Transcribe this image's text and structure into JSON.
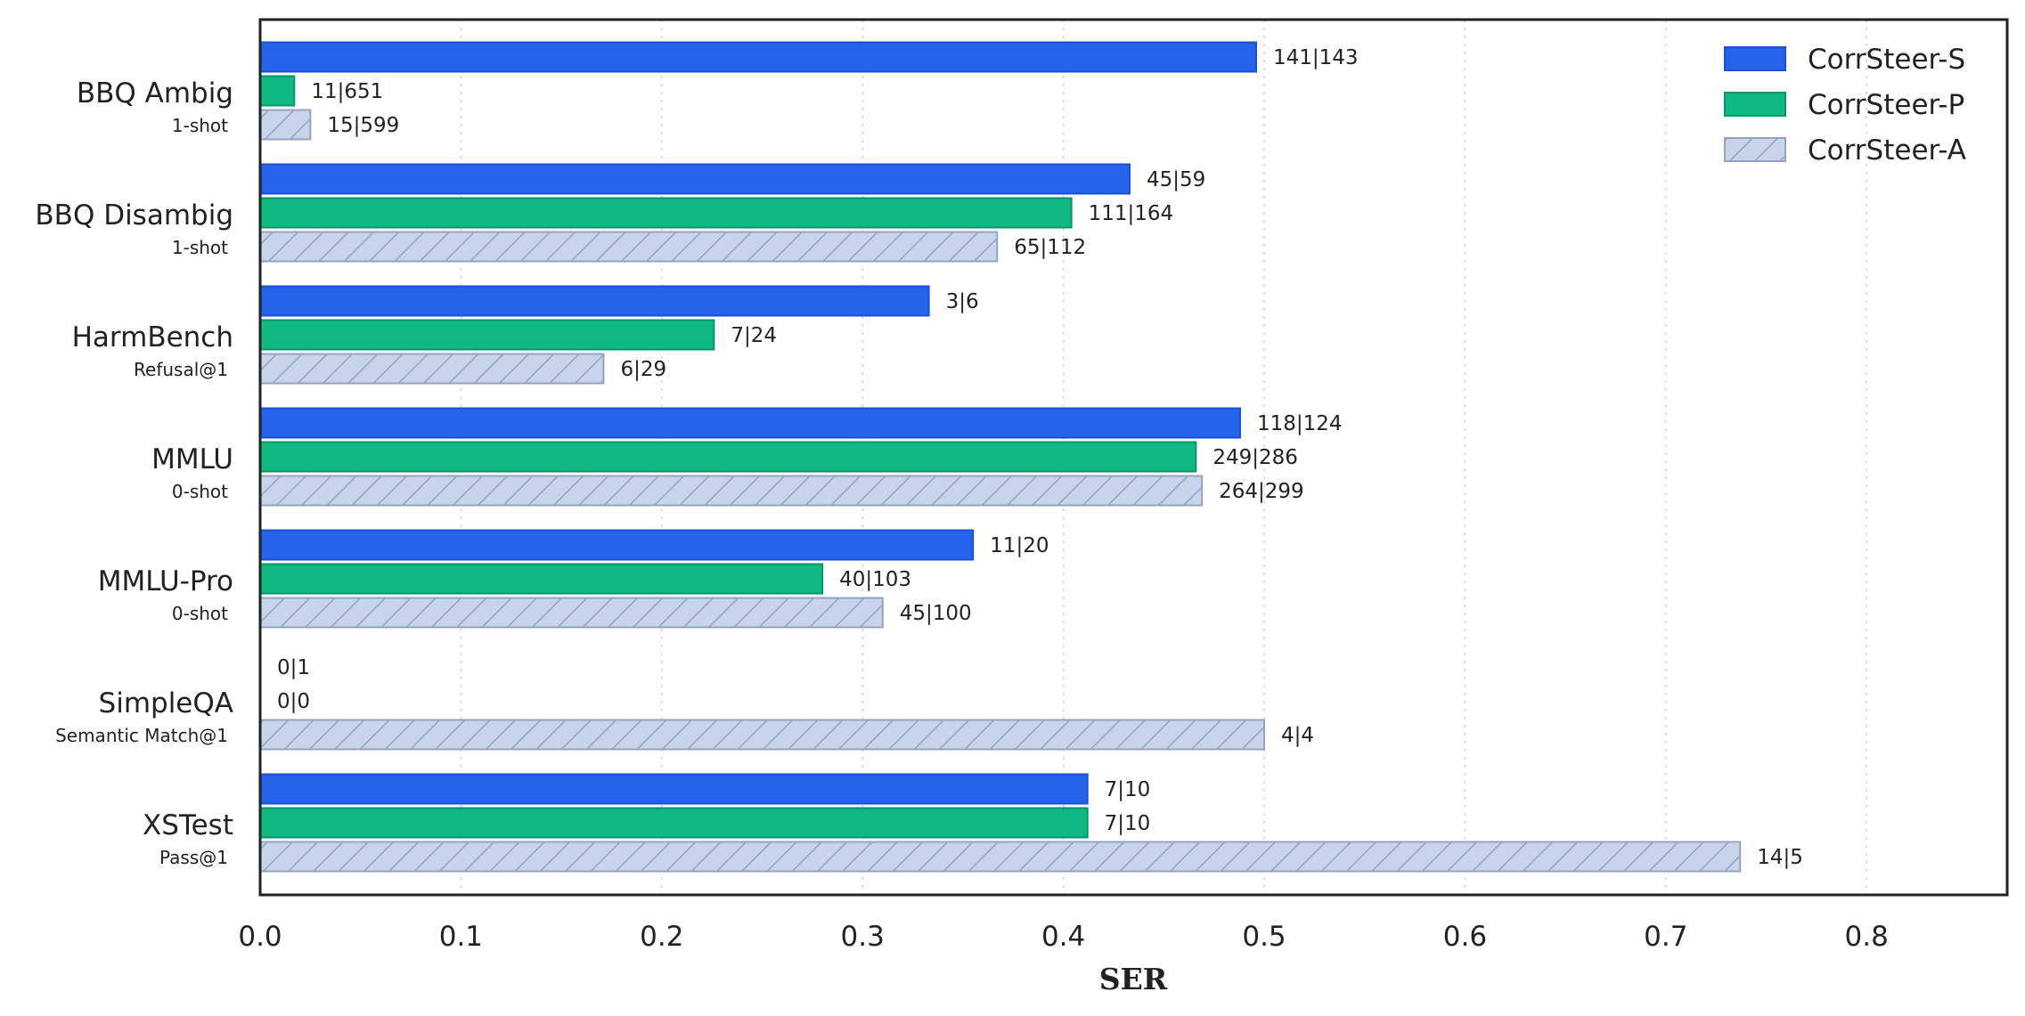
{
  "chart_data": {
    "type": "bar",
    "orientation": "horizontal",
    "xlabel": "SER",
    "xlim": [
      0,
      0.87
    ],
    "xticks": [
      0.0,
      0.1,
      0.2,
      0.3,
      0.4,
      0.5,
      0.6,
      0.7,
      0.8
    ],
    "xtick_labels": [
      "0.0",
      "0.1",
      "0.2",
      "0.3",
      "0.4",
      "0.5",
      "0.6",
      "0.7",
      "0.8"
    ],
    "grid": "vertical dotted",
    "legend_position": "top-right",
    "categories": [
      {
        "name": "BBQ Ambig",
        "sub": "1-shot"
      },
      {
        "name": "BBQ Disambig",
        "sub": "1-shot"
      },
      {
        "name": "HarmBench",
        "sub": "Refusal@1"
      },
      {
        "name": "MMLU",
        "sub": "0-shot"
      },
      {
        "name": "MMLU-Pro",
        "sub": "0-shot"
      },
      {
        "name": "SimpleQA",
        "sub": "Semantic Match@1"
      },
      {
        "name": "XSTest",
        "sub": "Pass@1"
      }
    ],
    "series": [
      {
        "name": "CorrSteer-S",
        "color": "#2563eb",
        "edge": "#1d4ed8",
        "hatch": false,
        "values": [
          0.496,
          0.433,
          0.333,
          0.488,
          0.355,
          0.0,
          0.412
        ],
        "labels": [
          "141|143",
          "45|59",
          "3|6",
          "118|124",
          "11|20",
          "0|1",
          "7|10"
        ]
      },
      {
        "name": "CorrSteer-P",
        "color": "#10b981",
        "edge": "#059669",
        "hatch": false,
        "values": [
          0.017,
          0.404,
          0.226,
          0.466,
          0.28,
          0.0,
          0.412
        ],
        "labels": [
          "11|651",
          "111|164",
          "7|24",
          "249|286",
          "40|103",
          "0|0",
          "7|10"
        ]
      },
      {
        "name": "CorrSteer-A",
        "color": "#c7d4ea",
        "edge": "#94a3c0",
        "hatch": true,
        "values": [
          0.025,
          0.367,
          0.171,
          0.469,
          0.31,
          0.5,
          0.737
        ],
        "labels": [
          "15|599",
          "65|112",
          "6|29",
          "264|299",
          "45|100",
          "4|4",
          "14|5"
        ]
      }
    ]
  }
}
